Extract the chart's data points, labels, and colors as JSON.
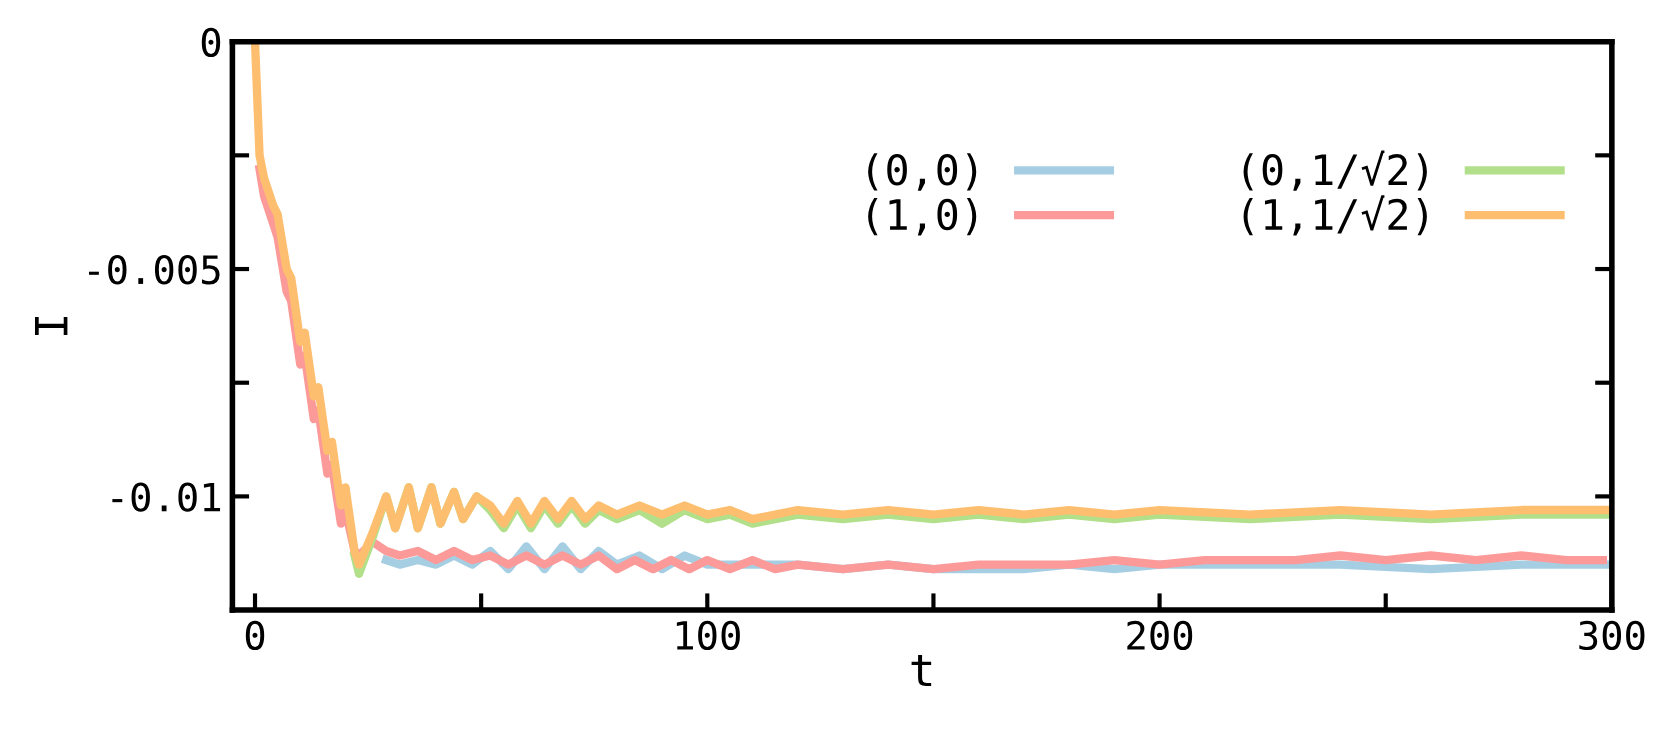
{
  "chart_data": {
    "type": "line",
    "xlabel": "t",
    "ylabel": "I",
    "xlim": [
      -5,
      300
    ],
    "ylim": [
      -0.0125,
      0
    ],
    "xticks": [
      0,
      {
        "value": 50,
        "label": null
      },
      100,
      {
        "value": 150,
        "label": null
      },
      200,
      {
        "value": 250,
        "label": null
      },
      300
    ],
    "yticks": [
      0,
      {
        "value": -0.0025,
        "label": null
      },
      {
        "value": -0.005,
        "label": "-0.005"
      },
      {
        "value": -0.0075,
        "label": null
      },
      {
        "value": -0.01,
        "label": "-0.01"
      }
    ],
    "grid": false,
    "legend": "top right",
    "marker": "none",
    "line_style": "solid",
    "series": [
      {
        "name": "(0,0)",
        "color": "#a6cee3",
        "x": [
          29,
          32,
          36,
          40,
          44,
          48,
          52,
          56,
          60,
          64,
          68,
          72,
          76,
          80,
          85,
          90,
          95,
          100,
          110,
          120,
          130,
          140,
          150,
          160,
          170,
          180,
          190,
          200,
          220,
          240,
          260,
          280,
          300
        ],
        "values": [
          -0.0114,
          -0.0115,
          -0.0114,
          -0.0115,
          -0.0113,
          -0.0115,
          -0.0112,
          -0.0116,
          -0.0111,
          -0.0116,
          -0.0111,
          -0.0116,
          -0.0112,
          -0.0115,
          -0.0113,
          -0.0116,
          -0.0113,
          -0.0115,
          -0.0115,
          -0.0115,
          -0.0116,
          -0.0115,
          -0.0116,
          -0.0116,
          -0.0116,
          -0.0115,
          -0.0116,
          -0.0115,
          -0.0115,
          -0.0115,
          -0.0116,
          -0.0115,
          -0.0115
        ]
      },
      {
        "name": "(1,0)",
        "color": "#fb9a99",
        "x": [
          1,
          2,
          4,
          5,
          7,
          8,
          10,
          11,
          13,
          14,
          16,
          17,
          19,
          20,
          22,
          23,
          26,
          29,
          32,
          36,
          40,
          44,
          48,
          52,
          56,
          60,
          64,
          68,
          72,
          76,
          80,
          84,
          88,
          92,
          96,
          100,
          105,
          110,
          115,
          120,
          130,
          140,
          150,
          160,
          170,
          180,
          190,
          200,
          210,
          220,
          230,
          240,
          250,
          260,
          270,
          280,
          290,
          298
        ],
        "values": [
          -0.0028,
          -0.0034,
          -0.004,
          -0.0043,
          -0.0055,
          -0.0057,
          -0.0071,
          -0.0069,
          -0.0083,
          -0.0081,
          -0.0095,
          -0.0093,
          -0.0106,
          -0.0103,
          -0.0112,
          -0.0113,
          -0.011,
          -0.0112,
          -0.0113,
          -0.0112,
          -0.0114,
          -0.0112,
          -0.0114,
          -0.0113,
          -0.0115,
          -0.0113,
          -0.0115,
          -0.0113,
          -0.0115,
          -0.0113,
          -0.0116,
          -0.0114,
          -0.0116,
          -0.0114,
          -0.0116,
          -0.0114,
          -0.0116,
          -0.0114,
          -0.0116,
          -0.0115,
          -0.0116,
          -0.0115,
          -0.0116,
          -0.0115,
          -0.0115,
          -0.0115,
          -0.0114,
          -0.0115,
          -0.0114,
          -0.0114,
          -0.0114,
          -0.0113,
          -0.0114,
          -0.0113,
          -0.0114,
          -0.0113,
          -0.0114,
          -0.0114
        ]
      },
      {
        "name": "(0,1/√2)",
        "color": "#b2df8a",
        "x": [
          22,
          23,
          26,
          29,
          31,
          34,
          36,
          39,
          41,
          44,
          46,
          49,
          52,
          55,
          58,
          61,
          64,
          67,
          70,
          73,
          76,
          80,
          85,
          90,
          95,
          100,
          105,
          110,
          120,
          130,
          140,
          150,
          160,
          170,
          180,
          190,
          200,
          220,
          240,
          260,
          280,
          300
        ],
        "values": [
          -0.0113,
          -0.0117,
          -0.0109,
          -0.01,
          -0.0107,
          -0.0098,
          -0.0107,
          -0.0098,
          -0.0106,
          -0.0099,
          -0.0105,
          -0.01,
          -0.0103,
          -0.0107,
          -0.0102,
          -0.0107,
          -0.0102,
          -0.0106,
          -0.0102,
          -0.0106,
          -0.0103,
          -0.0105,
          -0.0103,
          -0.0106,
          -0.0103,
          -0.0105,
          -0.0104,
          -0.0106,
          -0.0104,
          -0.0105,
          -0.0104,
          -0.0105,
          -0.0104,
          -0.0105,
          -0.0104,
          -0.0105,
          -0.0104,
          -0.0105,
          -0.0104,
          -0.0105,
          -0.0104,
          -0.0104
        ]
      },
      {
        "name": "(1,1/√2)",
        "color": "#fdbf6f",
        "x": [
          0,
          1,
          2,
          4,
          5,
          7,
          8,
          10,
          11,
          13,
          14,
          16,
          17,
          19,
          20,
          22,
          23,
          26,
          29,
          31,
          34,
          36,
          39,
          41,
          44,
          46,
          49,
          52,
          55,
          58,
          61,
          64,
          67,
          70,
          73,
          76,
          80,
          85,
          90,
          95,
          100,
          105,
          110,
          120,
          130,
          140,
          150,
          160,
          170,
          180,
          190,
          200,
          220,
          240,
          260,
          280,
          300
        ],
        "values": [
          0,
          -0.0025,
          -0.003,
          -0.0036,
          -0.0038,
          -0.005,
          -0.0052,
          -0.0066,
          -0.0064,
          -0.0078,
          -0.0076,
          -0.009,
          -0.0088,
          -0.0102,
          -0.0098,
          -0.0112,
          -0.0115,
          -0.0108,
          -0.01,
          -0.0107,
          -0.0098,
          -0.0107,
          -0.0098,
          -0.0106,
          -0.0099,
          -0.0105,
          -0.01,
          -0.0102,
          -0.0106,
          -0.0101,
          -0.0106,
          -0.0101,
          -0.0105,
          -0.0101,
          -0.0105,
          -0.0102,
          -0.0104,
          -0.0102,
          -0.0104,
          -0.0102,
          -0.0104,
          -0.0103,
          -0.0105,
          -0.0103,
          -0.0104,
          -0.0103,
          -0.0104,
          -0.0103,
          -0.0104,
          -0.0103,
          -0.0104,
          -0.0103,
          -0.0104,
          -0.0103,
          -0.0104,
          -0.0103,
          -0.0103
        ]
      }
    ]
  }
}
